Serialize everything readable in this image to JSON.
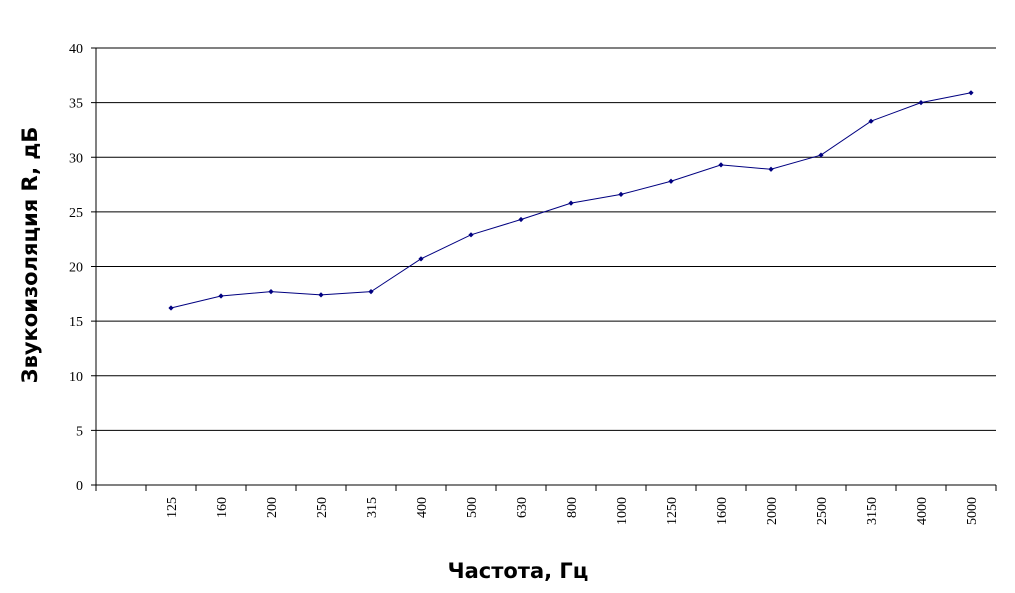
{
  "chart_data": {
    "type": "line",
    "title": "",
    "xlabel": "Частота, Гц",
    "ylabel": "Звукоизоляция R, дБ",
    "categories": [
      "125",
      "160",
      "200",
      "250",
      "315",
      "400",
      "500",
      "630",
      "800",
      "1000",
      "1250",
      "1600",
      "2000",
      "2500",
      "3150",
      "4000",
      "5000"
    ],
    "series": [
      {
        "values": [
          16.2,
          17.3,
          17.7,
          17.4,
          17.7,
          20.7,
          22.9,
          24.3,
          25.8,
          26.6,
          27.8,
          29.3,
          28.9,
          30.2,
          33.3,
          35.0,
          35.9
        ],
        "color": "#000080"
      }
    ],
    "ylim": [
      0,
      40
    ],
    "yticks": [
      "0",
      "5",
      "10",
      "15",
      "20",
      "25",
      "30",
      "35",
      "40"
    ],
    "grid": true,
    "legend": "none"
  }
}
